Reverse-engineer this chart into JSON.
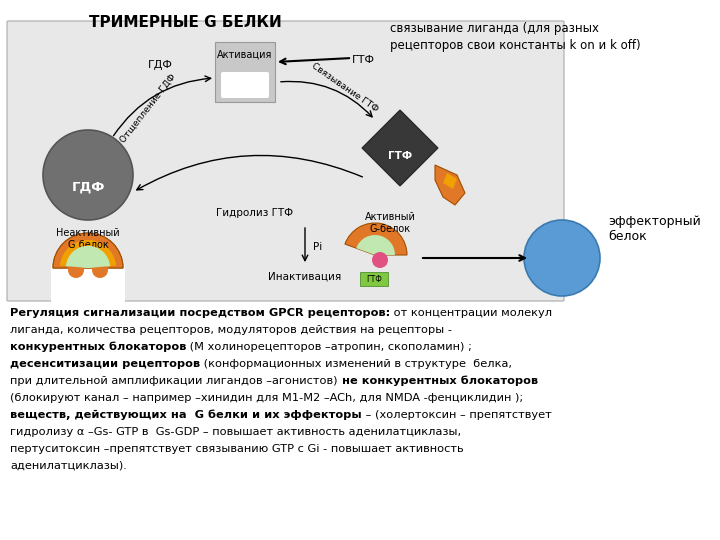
{
  "title": "ТРИМЕРНЫЕ G БЕЛКИ",
  "top_right_text": "связывание лиганда (для разных\nрецепторов свои константы k on и k off)",
  "effector_label": "эффекторный\nбелок",
  "activation_label": "Активация",
  "inactivation_label": "Инактивация",
  "gdp_label": "ГДФ",
  "gtp_label": "ГТФ",
  "hydrolysis_label": "Гидролиз ГТФ",
  "cleavage_label": "Отщепление ГДФ",
  "binding_label": "Связывание ГТФ",
  "inactive_g_label": "Неактивный\nG белок",
  "active_g_label": "Активный\nG-белок",
  "pi_label": "Рi",
  "line1_bold": "Регуляция сигнализации посредством GPCR рецепторов:",
  "line1_reg": " от концентрации молекул",
  "line2": "лиганда, количества рецепторов, модуляторов действия на рецепторы -",
  "line3_bold": "конкурентных блокаторов",
  "line3_reg": " (М холинорецепторов –атропин, скополамин) ;",
  "line4_bold": "десенситизации рецепторов",
  "line4_reg": " (конформационных изменений в структуре  белка,",
  "line5_reg": "при длительной амплификации лигандов –агонистов)",
  "line5_bold": " не конкурентных блокаторов",
  "line6": "(блокируют канал – например –хинидин для M1-M2 –ACh, для NMDA -фенциклидин );",
  "line7_bold": "веществ, действующих на  G белки и их эффекторы",
  "line7_reg": " – (холертоксин – препятствует",
  "line8": "гидролизу α –Gs- GTP в  Gs-GDP – повышает активность аденилатциклазы,",
  "line9": "пертуситоксин –препятствует связыванию GTP с Gi - повышает активность",
  "line10": "аденилатциклазы).",
  "bg_color": "#e8e8e8",
  "gdp_circle_color": "#707070",
  "blue_circle_color": "#5b9bd5",
  "orange_color": "#e07828",
  "yellow_orange": "#f0a000",
  "light_green": "#c0e8b0",
  "pink_color": "#e05080",
  "green_color": "#80c840",
  "dark_gtp": "#383838"
}
